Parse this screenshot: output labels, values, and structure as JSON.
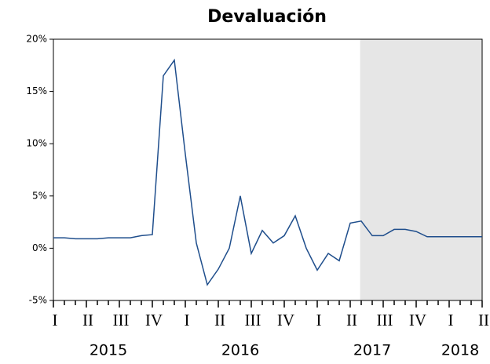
{
  "chart_data": {
    "type": "line",
    "title": "Devaluación",
    "categories": [
      "I",
      null,
      null,
      "II",
      null,
      null,
      "III",
      null,
      null,
      "IV",
      null,
      null,
      "I",
      null,
      null,
      "II",
      null,
      null,
      "III",
      null,
      null,
      "IV",
      null,
      null,
      "I",
      null,
      null,
      "II",
      null,
      null,
      "III",
      null,
      null,
      "IV",
      null,
      null,
      "I",
      null,
      null,
      "II"
    ],
    "year_labels": [
      "2015",
      "2016",
      "2017",
      "2018"
    ],
    "values": [
      1.0,
      1.0,
      0.9,
      0.9,
      0.9,
      1.0,
      1.0,
      1.0,
      1.2,
      1.3,
      16.5,
      18.0,
      9.0,
      0.5,
      -3.5,
      -2.0,
      0.0,
      5.0,
      -0.5,
      1.7,
      0.5,
      1.2,
      3.1,
      0.0,
      -2.1,
      -0.5,
      -1.2,
      2.4,
      2.6,
      1.2,
      1.2,
      1.8,
      1.8,
      1.6,
      1.1,
      1.1,
      1.1,
      1.1,
      1.1,
      1.1
    ],
    "color": "#1f4e8c",
    "shaded_from": 28,
    "shade_color": "#e6e6e6",
    "ylim": [
      -5,
      20
    ],
    "yticks": [
      {
        "value": -5,
        "label": "-5%"
      },
      {
        "value": 0,
        "label": "0%"
      },
      {
        "value": 5,
        "label": "5%"
      },
      {
        "value": 10,
        "label": "10%"
      },
      {
        "value": 15,
        "label": "15%"
      },
      {
        "value": 20,
        "label": "20%"
      }
    ],
    "grid": false
  }
}
